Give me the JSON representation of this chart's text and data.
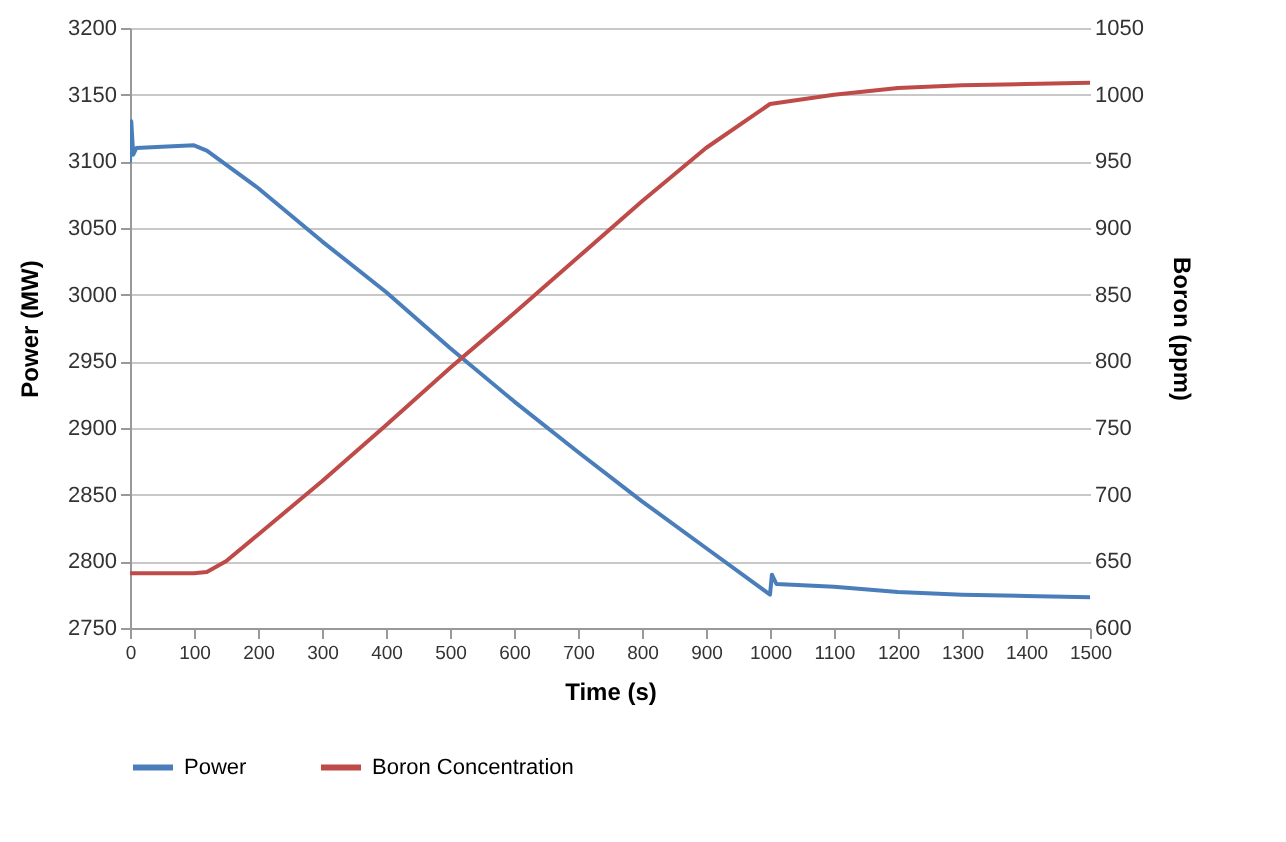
{
  "chart_data": {
    "type": "line",
    "xlabel": "Time (s)",
    "ylabel": "Power (MW)",
    "y2label": "Boron (ppm)",
    "xlim": [
      0,
      1500
    ],
    "xticks": [
      0,
      100,
      200,
      300,
      400,
      500,
      600,
      700,
      800,
      900,
      1000,
      1100,
      1200,
      1300,
      1400,
      1500
    ],
    "ylim": [
      2750,
      3200
    ],
    "yticks": [
      2750,
      2800,
      2850,
      2900,
      2950,
      3000,
      3050,
      3100,
      3150,
      3200
    ],
    "y2lim": [
      600,
      1050
    ],
    "y2ticks": [
      600,
      650,
      700,
      750,
      800,
      850,
      900,
      950,
      1000,
      1050
    ],
    "grid": "y",
    "legend": "bottom",
    "marker": "none",
    "line_style": "solid",
    "series": [
      {
        "name": "Power",
        "color": "#4a7ebb",
        "x": [
          0,
          2,
          5,
          10,
          50,
          100,
          120,
          200,
          300,
          400,
          500,
          600,
          700,
          800,
          900,
          1000,
          1003,
          1010,
          1100,
          1200,
          1300,
          1400,
          1500
        ],
        "values": [
          3100,
          3130,
          3105,
          3110,
          3111,
          3112,
          3108,
          3080,
          3040,
          3002,
          2960,
          2920,
          2882,
          2845,
          2810,
          2775,
          2790,
          2783,
          2781,
          2777,
          2775,
          2774,
          2773
        ]
      },
      {
        "name": "Boron Concentration",
        "color": "#be4b48",
        "axis": "y2",
        "x": [
          0,
          100,
          120,
          150,
          200,
          300,
          400,
          500,
          600,
          700,
          800,
          900,
          1000,
          1100,
          1200,
          1300,
          1400,
          1500
        ],
        "values": [
          641,
          641,
          642,
          650,
          670,
          710,
          752,
          795,
          836,
          878,
          920,
          960,
          993,
          1000,
          1005,
          1007,
          1008,
          1009
        ]
      }
    ]
  }
}
